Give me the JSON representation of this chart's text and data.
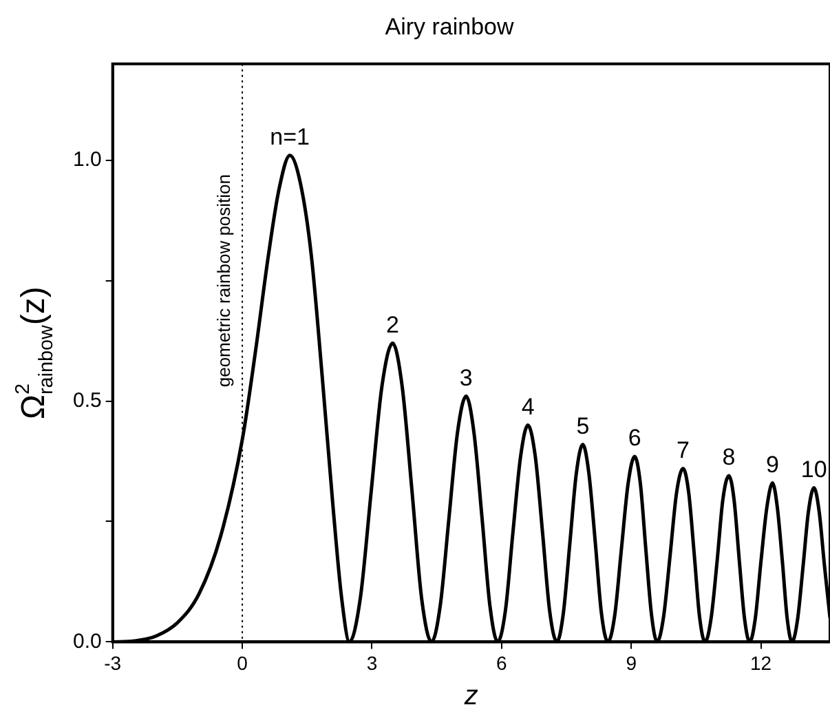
{
  "chart_data": {
    "type": "line",
    "title": "Airy rainbow",
    "xlabel": "z",
    "ylabel": "Ω$^{2}$$_{rainbow}$(z)",
    "x": [
      -3,
      -2.5,
      -2,
      -1.5,
      -1,
      -0.5,
      0,
      0.3,
      0.6,
      0.85,
      1.1,
      1.35,
      1.6,
      1.85,
      2.1,
      2.3,
      2.48,
      2.73,
      2.98,
      3.23,
      3.48,
      3.7,
      3.93,
      4.15,
      4.38,
      4.58,
      4.78,
      4.98,
      5.18,
      5.36,
      5.55,
      5.73,
      5.91,
      6.09,
      6.26,
      6.44,
      6.61,
      6.78,
      6.95,
      7.11,
      7.28,
      7.43,
      7.58,
      7.73,
      7.88,
      8.02,
      8.17,
      8.31,
      8.46,
      8.62,
      8.77,
      8.93,
      9.08,
      9.21,
      9.34,
      9.47,
      9.6,
      9.75,
      9.9,
      10.05,
      10.2,
      10.33,
      10.46,
      10.58,
      10.71,
      10.85,
      10.99,
      11.12,
      11.26,
      11.38,
      11.5,
      11.62,
      11.74,
      11.87,
      12.0,
      12.14,
      12.27,
      12.38,
      12.5,
      12.61,
      12.72,
      12.85,
      12.98,
      13.1,
      13.23,
      13.35,
      13.47,
      13.6
    ],
    "series": [
      {
        "color": "#000000",
        "values": [
          0,
          0.002,
          0.012,
          0.04,
          0.1,
          0.22,
          0.42,
          0.6,
          0.8,
          0.94,
          1.01,
          0.95,
          0.8,
          0.55,
          0.28,
          0.09,
          0,
          0.09,
          0.31,
          0.53,
          0.62,
          0.53,
          0.31,
          0.09,
          0,
          0.075,
          0.255,
          0.435,
          0.51,
          0.435,
          0.255,
          0.075,
          0,
          0.066,
          0.225,
          0.385,
          0.45,
          0.385,
          0.225,
          0.066,
          0,
          0.06,
          0.205,
          0.35,
          0.41,
          0.35,
          0.205,
          0.06,
          0,
          0.056,
          0.19,
          0.33,
          0.385,
          0.33,
          0.19,
          0.056,
          0,
          0.053,
          0.18,
          0.31,
          0.36,
          0.31,
          0.18,
          0.053,
          0,
          0.05,
          0.17,
          0.295,
          0.345,
          0.295,
          0.17,
          0.05,
          0,
          0.048,
          0.165,
          0.28,
          0.33,
          0.28,
          0.165,
          0.048,
          0,
          0.047,
          0.16,
          0.27,
          0.32,
          0.27,
          0.16,
          0.05
        ]
      }
    ],
    "xlim": [
      -3,
      13.6
    ],
    "xticks": [
      -3,
      0,
      3,
      6,
      9,
      12
    ],
    "ylim": [
      0,
      1.2
    ],
    "yticks": [
      "0.0",
      {
        "value": 0.25,
        "label": null
      },
      {
        "value": 0.5,
        "label": "0.5"
      },
      {
        "value": 0.75,
        "label": null
      },
      {
        "value": 1,
        "label": "1.0"
      }
    ],
    "ref_lines": [
      {
        "axis": "x",
        "value": 0,
        "label": "geometric rainbow position",
        "line_style": "dotted",
        "color": "#000000"
      }
    ],
    "annotations": [
      {
        "text": "n=1",
        "x": 1.1,
        "y": 1.01
      },
      {
        "text": "2",
        "x": 3.48,
        "y": 0.62
      },
      {
        "text": "3",
        "x": 5.18,
        "y": 0.51
      },
      {
        "text": "4",
        "x": 6.61,
        "y": 0.45
      },
      {
        "text": "5",
        "x": 7.88,
        "y": 0.41
      },
      {
        "text": "6",
        "x": 9.08,
        "y": 0.385
      },
      {
        "text": "7",
        "x": 10.2,
        "y": 0.36
      },
      {
        "text": "8",
        "x": 11.26,
        "y": 0.345
      },
      {
        "text": "9",
        "x": 12.27,
        "y": 0.33
      },
      {
        "text": "10",
        "x": 13.23,
        "y": 0.32
      }
    ],
    "grid": false,
    "legend": false,
    "marker": "none",
    "line_style": "solid"
  }
}
